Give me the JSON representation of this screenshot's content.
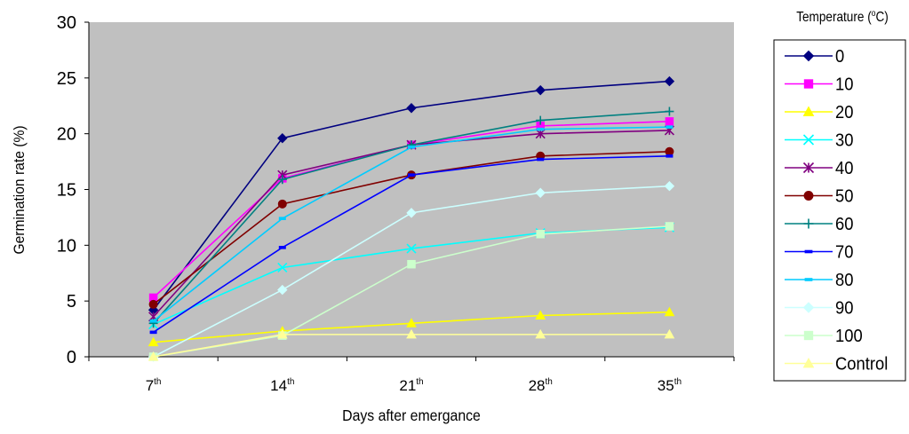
{
  "chart_data": {
    "type": "line",
    "categories": [
      {
        "base": "7",
        "sup": "th"
      },
      {
        "base": "14",
        "sup": "th"
      },
      {
        "base": "21",
        "sup": "th"
      },
      {
        "base": "28",
        "sup": "th"
      },
      {
        "base": "35",
        "sup": "th"
      }
    ],
    "xlabel": "Days after emergance",
    "ylabel": "Germination rate (%)",
    "ylim": [
      0,
      30
    ],
    "yticks": [
      "0",
      "5",
      "10",
      "15",
      "20",
      "25",
      "30"
    ],
    "legend_title": {
      "pre": "Temperature (",
      "sup": "o",
      "post": "C)"
    },
    "legend_position": "right",
    "plot_background": "#c0c0c0",
    "grid": false,
    "series": [
      {
        "name": "0",
        "color": "#000080",
        "marker": "diamond",
        "values": [
          4.2,
          19.6,
          22.3,
          23.9,
          24.7
        ]
      },
      {
        "name": "10",
        "color": "#ff00ff",
        "marker": "square",
        "values": [
          5.3,
          16.0,
          19.0,
          20.7,
          21.1
        ]
      },
      {
        "name": "20",
        "color": "#ffff00",
        "marker": "triangle",
        "values": [
          1.3,
          2.3,
          3.0,
          3.7,
          4.0
        ]
      },
      {
        "name": "30",
        "color": "#00ffff",
        "marker": "x",
        "values": [
          2.9,
          8.0,
          9.7,
          11.1,
          11.6
        ]
      },
      {
        "name": "40",
        "color": "#800080",
        "marker": "star",
        "values": [
          3.6,
          16.3,
          19.0,
          20.0,
          20.3
        ]
      },
      {
        "name": "50",
        "color": "#800000",
        "marker": "circle",
        "values": [
          4.7,
          13.7,
          16.3,
          18.0,
          18.4
        ]
      },
      {
        "name": "60",
        "color": "#008080",
        "marker": "plus",
        "values": [
          3.0,
          15.9,
          19.0,
          21.2,
          22.0
        ]
      },
      {
        "name": "70",
        "color": "#0000ff",
        "marker": "dash",
        "values": [
          2.2,
          9.8,
          16.3,
          17.7,
          18.0
        ]
      },
      {
        "name": "80",
        "color": "#00ccff",
        "marker": "dash",
        "values": [
          3.2,
          12.4,
          18.8,
          20.4,
          20.6
        ]
      },
      {
        "name": "90",
        "color": "#ccffff",
        "marker": "diamond",
        "values": [
          0.0,
          6.0,
          12.9,
          14.7,
          15.3
        ]
      },
      {
        "name": "100",
        "color": "#ccffcc",
        "marker": "square",
        "values": [
          0.0,
          1.9,
          8.3,
          11.0,
          11.7
        ]
      },
      {
        "name": "Control",
        "color": "#ffff99",
        "marker": "triangle",
        "values": [
          0.0,
          2.0,
          2.0,
          2.0,
          2.0
        ]
      }
    ]
  }
}
